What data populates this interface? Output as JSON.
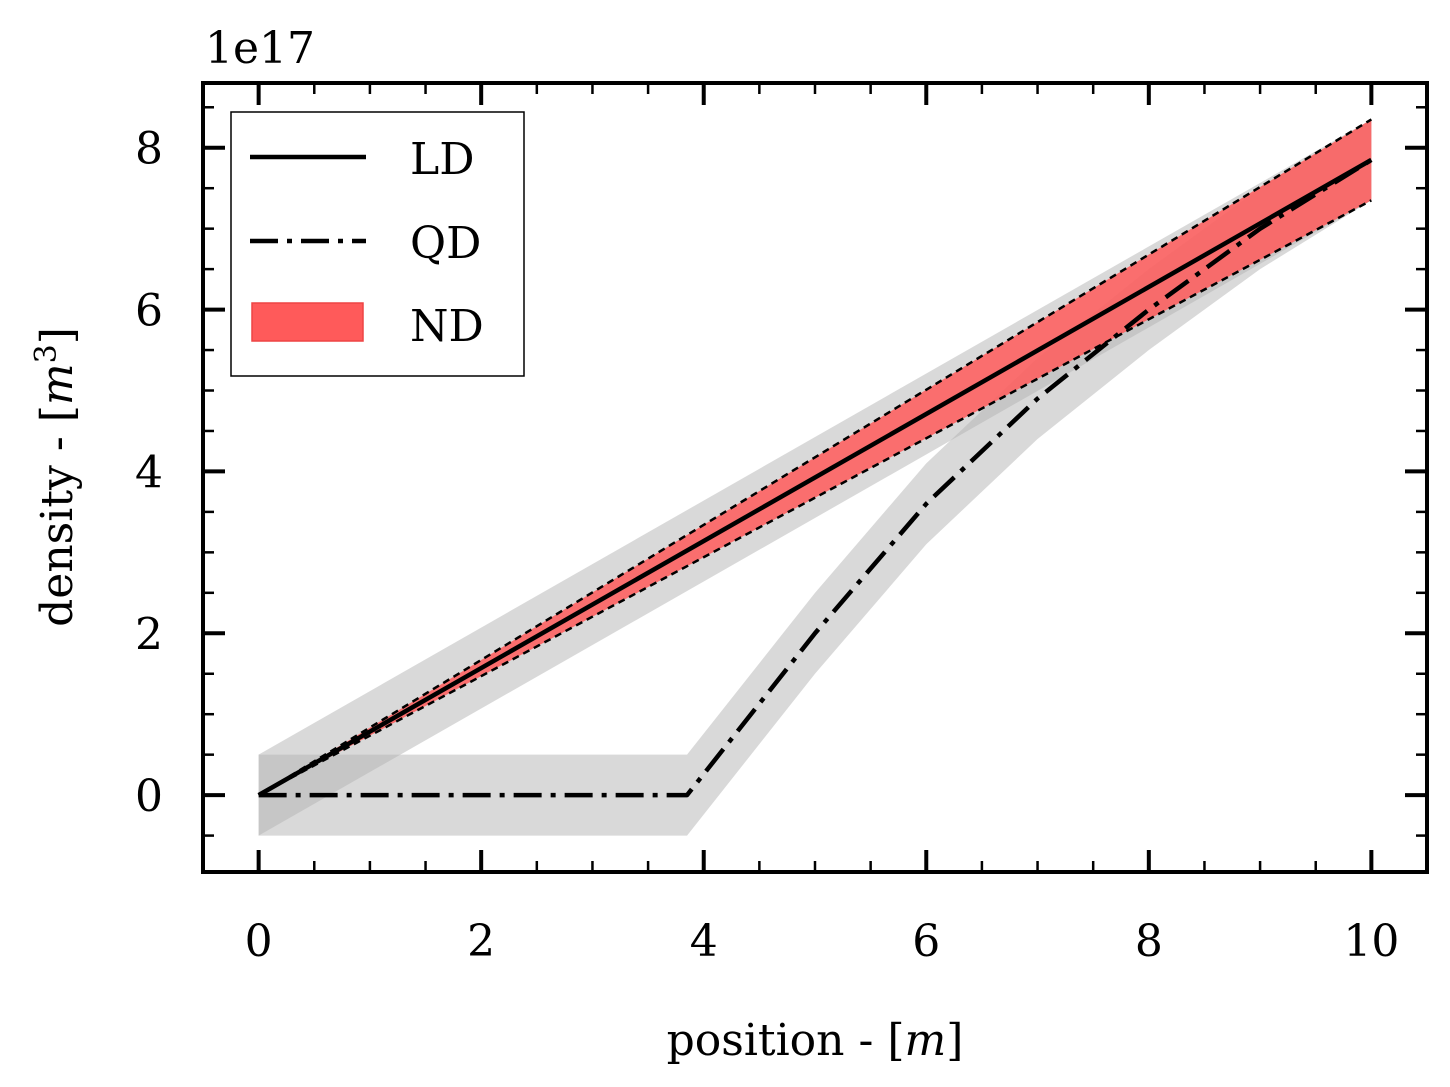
{
  "chart_data": {
    "type": "line",
    "xlabel_text": "position - [",
    "xlabel_unit": "m",
    "xlabel_close": "]",
    "ylabel_text": "density - [",
    "ylabel_unit": "m",
    "ylabel_power": "3",
    "ylabel_close": "]",
    "y_offset_label": "1e17",
    "xlim": [
      -0.5,
      10.5
    ],
    "ylim": [
      -0.95,
      8.8
    ],
    "x_ticks": [
      0,
      2,
      4,
      6,
      8,
      10
    ],
    "x_tick_labels": [
      "0",
      "2",
      "4",
      "6",
      "8",
      "10"
    ],
    "y_ticks": [
      0,
      2,
      4,
      6,
      8
    ],
    "y_tick_labels": [
      "0",
      "2",
      "4",
      "6",
      "8"
    ],
    "x_minor_step": 0.5,
    "y_minor_step": 0.5,
    "grid": false,
    "legend_position": "top-left",
    "legend": [
      {
        "key": "LD",
        "label": "LD",
        "style": "solid"
      },
      {
        "key": "QD",
        "label": "QD",
        "style": "dashdot"
      },
      {
        "key": "ND",
        "label": "ND",
        "style": "patch"
      }
    ],
    "colors": {
      "line": "#000000",
      "nd_fill": "#ff5a5a",
      "band": "#b4b4b4"
    },
    "series": [
      {
        "key": "LD",
        "style": "solid",
        "x": [
          0,
          10
        ],
        "y": [
          0,
          7.85
        ],
        "band_lower": [
          -0.5,
          7.35
        ],
        "band_upper": [
          0.5,
          8.35
        ]
      },
      {
        "key": "QD",
        "style": "dashdot",
        "x": [
          0,
          3.85,
          5,
          6,
          7,
          8,
          9,
          10
        ],
        "y": [
          0,
          0,
          2.0,
          3.6,
          4.9,
          6.0,
          7.0,
          7.85
        ],
        "band_lower": [
          -0.5,
          -0.5,
          1.5,
          3.1,
          4.4,
          5.5,
          6.5,
          7.35
        ],
        "band_upper": [
          0.5,
          0.5,
          2.5,
          4.1,
          5.4,
          6.5,
          7.5,
          8.35
        ]
      },
      {
        "key": "ND",
        "style": "fill",
        "x": [
          0,
          10
        ],
        "lower": [
          0,
          7.35
        ],
        "upper": [
          0,
          8.35
        ]
      }
    ]
  }
}
